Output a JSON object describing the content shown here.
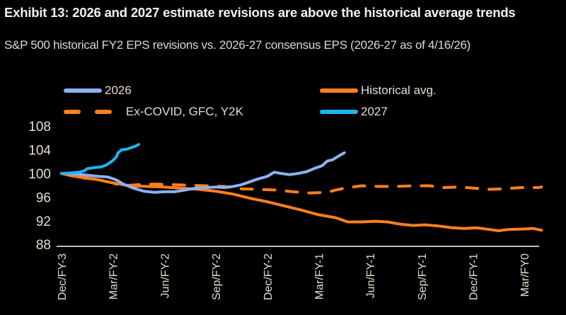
{
  "header": {
    "title": "Exhibit 13: 2026 and 2027 estimate revisions are above the historical average trends",
    "subtitle": "S&P 500 historical FY2 EPS revisions vs. 2026-27 consensus EPS (2026-27 as of 4/16/26)"
  },
  "chart_data": {
    "type": "line",
    "title": "Exhibit 13: 2026 and 2027 estimate revisions are above the historical average trends",
    "subtitle": "S&P 500 historical FY2 EPS revisions vs. 2026-27 consensus EPS (2026-27 as of 4/16/26)",
    "xlabel": "",
    "ylabel": "",
    "x_unit": "months since Dec/FY-3",
    "xlim": [
      -0.2,
      28.2
    ],
    "ylim": [
      88,
      108
    ],
    "yticks": [
      88,
      92,
      96,
      100,
      104,
      108
    ],
    "xticks": [
      {
        "label": "Dec/FY-3",
        "x": 0
      },
      {
        "label": "Mar/FY-2",
        "x": 3
      },
      {
        "label": "Jun/FY-2",
        "x": 6
      },
      {
        "label": "Sep/FY-2",
        "x": 9
      },
      {
        "label": "Dec/FY-2",
        "x": 12
      },
      {
        "label": "Mar/FY-1",
        "x": 15
      },
      {
        "label": "Jun/FY-1",
        "x": 18
      },
      {
        "label": "Sep/FY-1",
        "x": 21
      },
      {
        "label": "Dec/FY-1",
        "x": 24
      },
      {
        "label": "Mar/FY0",
        "x": 27
      }
    ],
    "grid": false,
    "legend_position": "top",
    "series": [
      {
        "name": "2026",
        "color": "#8db0f7",
        "style": "solid",
        "points": [
          [
            0,
            100
          ],
          [
            0.8,
            99.9
          ],
          [
            1.5,
            99.7
          ],
          [
            2.2,
            99.5
          ],
          [
            2.7,
            99.4
          ],
          [
            3.2,
            98.9
          ],
          [
            3.6,
            98.2
          ],
          [
            4.2,
            97.5
          ],
          [
            4.8,
            97.0
          ],
          [
            5.4,
            96.8
          ],
          [
            6.0,
            96.9
          ],
          [
            6.6,
            96.9
          ],
          [
            7.2,
            97.2
          ],
          [
            7.8,
            97.5
          ],
          [
            8.4,
            97.6
          ],
          [
            9.0,
            97.7
          ],
          [
            9.5,
            97.6
          ],
          [
            10.0,
            97.8
          ],
          [
            10.5,
            98.1
          ],
          [
            11.0,
            98.6
          ],
          [
            11.5,
            99.1
          ],
          [
            12.0,
            99.5
          ],
          [
            12.4,
            100.2
          ],
          [
            12.8,
            100.0
          ],
          [
            13.3,
            99.8
          ],
          [
            13.8,
            100.0
          ],
          [
            14.3,
            100.3
          ],
          [
            14.8,
            100.9
          ],
          [
            15.2,
            101.3
          ],
          [
            15.5,
            102.1
          ],
          [
            15.8,
            102.3
          ],
          [
            16.2,
            103.0
          ],
          [
            16.5,
            103.5
          ]
        ]
      },
      {
        "name": "Historical avg.",
        "color": "#ff7f1e",
        "style": "solid",
        "points": [
          [
            0,
            100
          ],
          [
            1,
            99.4
          ],
          [
            2,
            99.0
          ],
          [
            3,
            98.4
          ],
          [
            4,
            97.9
          ],
          [
            5,
            97.8
          ],
          [
            6,
            97.7
          ],
          [
            7,
            97.5
          ],
          [
            8,
            97.3
          ],
          [
            9,
            97.0
          ],
          [
            10,
            96.5
          ],
          [
            11,
            95.8
          ],
          [
            12,
            95.2
          ],
          [
            13,
            94.5
          ],
          [
            14,
            93.8
          ],
          [
            15,
            93.0
          ],
          [
            16,
            92.5
          ],
          [
            16.7,
            91.8
          ],
          [
            17.5,
            91.8
          ],
          [
            18.3,
            91.9
          ],
          [
            19,
            91.8
          ],
          [
            19.8,
            91.4
          ],
          [
            20.5,
            91.2
          ],
          [
            21.2,
            91.3
          ],
          [
            22,
            91.1
          ],
          [
            22.8,
            90.8
          ],
          [
            23.5,
            90.7
          ],
          [
            24.2,
            90.8
          ],
          [
            25,
            90.5
          ],
          [
            25.5,
            90.3
          ],
          [
            26,
            90.5
          ],
          [
            27,
            90.6
          ],
          [
            27.5,
            90.7
          ],
          [
            28,
            90.4
          ]
        ]
      },
      {
        "name": "Ex-COVID, GFC, Y2K",
        "color": "#ff7f1e",
        "style": "dashed",
        "points": [
          [
            0,
            100
          ],
          [
            1,
            99.3
          ],
          [
            2,
            99.0
          ],
          [
            3,
            98.4
          ],
          [
            3.5,
            97.9
          ],
          [
            4.5,
            98.1
          ],
          [
            5.5,
            98.2
          ],
          [
            6.5,
            98.1
          ],
          [
            7.5,
            98.0
          ],
          [
            8.5,
            97.9
          ],
          [
            9.5,
            97.8
          ],
          [
            10.5,
            97.4
          ],
          [
            11.5,
            97.3
          ],
          [
            12.5,
            97.2
          ],
          [
            13.5,
            96.9
          ],
          [
            14.5,
            96.7
          ],
          [
            15.5,
            96.8
          ],
          [
            16.0,
            97.2
          ],
          [
            16.7,
            97.6
          ],
          [
            17.5,
            97.9
          ],
          [
            18.5,
            97.8
          ],
          [
            19.5,
            97.8
          ],
          [
            20.5,
            97.9
          ],
          [
            21.5,
            97.9
          ],
          [
            22.3,
            97.6
          ],
          [
            23.2,
            97.7
          ],
          [
            24.1,
            97.5
          ],
          [
            25,
            97.3
          ],
          [
            25.8,
            97.4
          ],
          [
            26.8,
            97.6
          ],
          [
            27.8,
            97.6
          ],
          [
            28,
            97.7
          ]
        ]
      },
      {
        "name": "2027",
        "color": "#1fb4f2",
        "style": "solid",
        "points": [
          [
            0,
            100
          ],
          [
            0.6,
            100.1
          ],
          [
            1.0,
            100.2
          ],
          [
            1.3,
            100.4
          ],
          [
            1.5,
            100.8
          ],
          [
            1.9,
            101.0
          ],
          [
            2.3,
            101.1
          ],
          [
            2.6,
            101.4
          ],
          [
            2.8,
            101.8
          ],
          [
            3.0,
            102.2
          ],
          [
            3.2,
            102.8
          ],
          [
            3.3,
            103.5
          ],
          [
            3.5,
            104.0
          ],
          [
            3.8,
            104.1
          ],
          [
            4.0,
            104.3
          ],
          [
            4.3,
            104.6
          ],
          [
            4.5,
            104.9
          ]
        ]
      }
    ]
  }
}
